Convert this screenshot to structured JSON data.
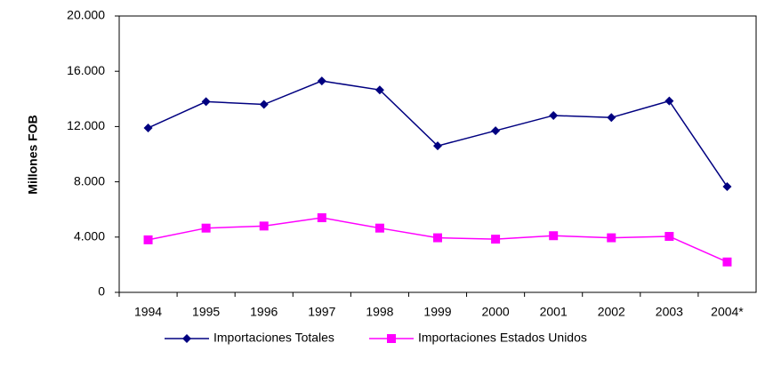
{
  "chart_data": {
    "type": "line",
    "y_label": "Millones FOB",
    "categories": [
      "1994",
      "1995",
      "1996",
      "1997",
      "1998",
      "1999",
      "2000",
      "2001",
      "2002",
      "2003",
      "2004*"
    ],
    "series": [
      {
        "name": "Importaciones Totales",
        "color": "#000080",
        "marker": "diamond",
        "values": [
          11900,
          13800,
          13600,
          15300,
          14650,
          10600,
          11700,
          12800,
          12650,
          13850,
          7650
        ]
      },
      {
        "name": "Importaciones Estados Unidos",
        "color": "#ff00ff",
        "marker": "square",
        "values": [
          3800,
          4650,
          4800,
          5400,
          4650,
          3950,
          3850,
          4100,
          3950,
          4050,
          2200
        ]
      }
    ],
    "ylim": [
      0,
      20000
    ],
    "yticks": [
      0,
      {
        "value": 4000,
        "label": "4.000"
      },
      {
        "value": 8000,
        "label": "8.000"
      },
      {
        "value": 12000,
        "label": "12.000"
      },
      {
        "value": 16000,
        "label": "16.000"
      },
      {
        "value": 20000,
        "label": "20.000"
      }
    ],
    "grid": false,
    "legend": "bottom"
  }
}
